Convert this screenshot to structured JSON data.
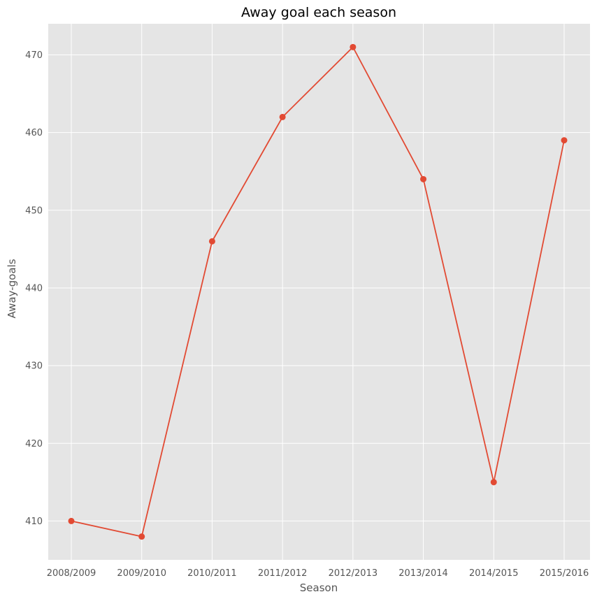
{
  "chart_data": {
    "type": "line",
    "title": "Away goal each season",
    "xlabel": "Season",
    "ylabel": "Away-goals",
    "categories": [
      "2008/2009",
      "2009/2010",
      "2010/2011",
      "2011/2012",
      "2012/2013",
      "2013/2014",
      "2014/2015",
      "2015/2016"
    ],
    "series": [
      {
        "values": [
          410,
          408,
          446,
          462,
          471,
          454,
          415,
          459
        ]
      }
    ],
    "ylim": [
      405,
      474
    ],
    "yticks": [
      410,
      420,
      430,
      440,
      450,
      460,
      470
    ],
    "grid": true,
    "colors": {
      "line": "#E24A33",
      "background": "#E5E5E5",
      "grid": "#FFFFFF"
    }
  }
}
